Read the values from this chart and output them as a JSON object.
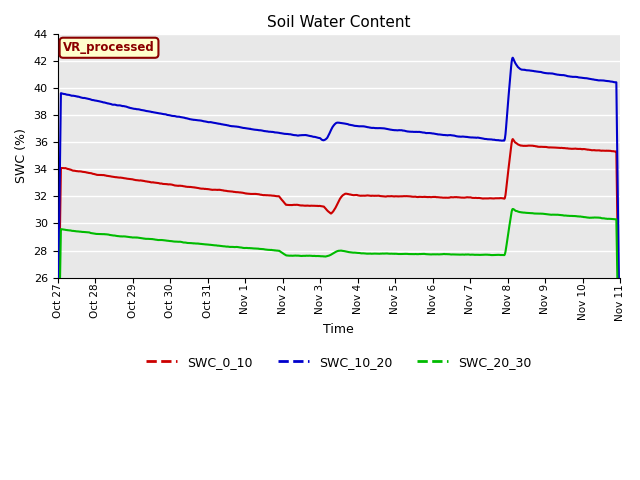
{
  "title": "Soil Water Content",
  "xlabel": "Time",
  "ylabel": "SWC (%)",
  "ylim": [
    26,
    44
  ],
  "yticks": [
    26,
    28,
    30,
    32,
    34,
    36,
    38,
    40,
    42,
    44
  ],
  "annotation_text": "VR_processed",
  "annotation_color": "#8B0000",
  "annotation_bg": "#FFFFCC",
  "annotation_border": "#8B0000",
  "colors": {
    "SWC_0_10": "#CC0000",
    "SWC_10_20": "#0000CC",
    "SWC_20_30": "#00BB00"
  },
  "bg_color": "#E8E8E8",
  "grid_color": "#FFFFFF",
  "xtick_labels": [
    "Oct 27",
    "Oct 28",
    "Oct 29",
    "Oct 30",
    "Oct 31",
    "Nov 1",
    "Nov 2",
    "Nov 3",
    "Nov 4",
    "Nov 5",
    "Nov 6",
    "Nov 7",
    "Nov 8",
    "Nov 9",
    "Nov 10",
    "Nov 11"
  ]
}
